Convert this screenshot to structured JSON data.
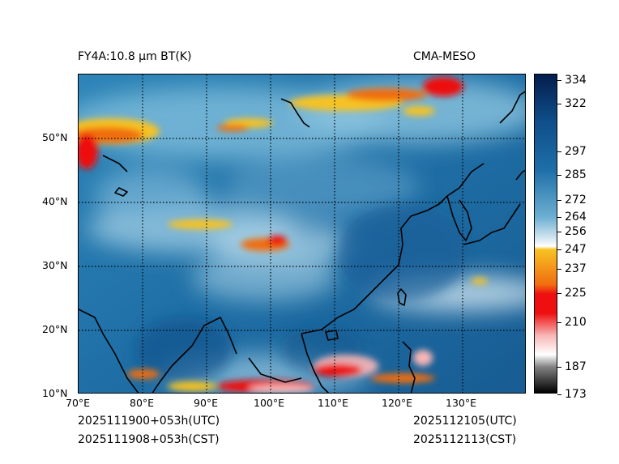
{
  "header": {
    "product_title": "FY4A:10.8 µm BT(K)",
    "model_title": "CMA-MESO"
  },
  "footer": {
    "init_utc": "2025111900+053h(UTC)",
    "init_cst": "2025111908+053h(CST)",
    "valid_utc": "2025112105(UTC)",
    "valid_cst": "2025112113(CST)"
  },
  "map": {
    "lon_ticks": [
      "70°E",
      "80°E",
      "90°E",
      "100°E",
      "110°E",
      "120°E",
      "130°E"
    ],
    "lat_ticks": [
      "10°N",
      "20°N",
      "30°N",
      "40°N",
      "50°N"
    ],
    "extent_deg": {
      "lon_min": 70,
      "lon_max": 140,
      "lat_min": 10,
      "lat_max": 60
    }
  },
  "colorbar": {
    "unit": "K",
    "labels": [
      "334",
      "322",
      "297",
      "285",
      "272",
      "264",
      "256",
      "247",
      "237",
      "225",
      "210",
      "187",
      "173"
    ],
    "colors": {
      "darkest": "#041d4d",
      "deep_blue": "#0f4f8a",
      "mid_blue": "#1e6fa8",
      "light_blue": "#6fb0d2",
      "pale": "#dcebf3",
      "yellow": "#f7c224",
      "orange": "#f06d10",
      "red": "#ee1010",
      "pink": "#f8b6b6",
      "gray": "#808080",
      "black": "#000000"
    }
  }
}
